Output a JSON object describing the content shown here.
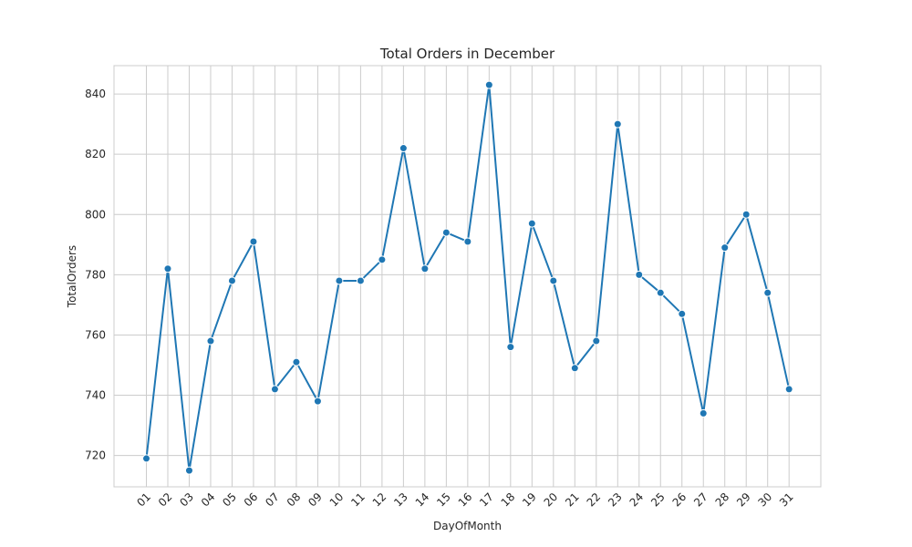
{
  "chart_data": {
    "type": "line",
    "title": "Total Orders in December",
    "xlabel": "DayOfMonth",
    "ylabel": "TotalOrders",
    "categories": [
      "01",
      "02",
      "03",
      "04",
      "05",
      "06",
      "07",
      "08",
      "09",
      "10",
      "11",
      "12",
      "13",
      "14",
      "15",
      "16",
      "17",
      "18",
      "19",
      "20",
      "21",
      "22",
      "23",
      "24",
      "25",
      "26",
      "27",
      "28",
      "29",
      "30",
      "31"
    ],
    "series": [
      {
        "values": [
          719,
          782,
          715,
          758,
          778,
          791,
          742,
          751,
          738,
          778,
          778,
          785,
          822,
          782,
          794,
          791,
          843,
          756,
          797,
          778,
          749,
          758,
          830,
          780,
          774,
          767,
          734,
          789,
          800,
          774,
          742
        ]
      }
    ],
    "ylim": [
      709.6,
      849.4
    ],
    "yticks": [
      720,
      740,
      760,
      780,
      800,
      820,
      840
    ],
    "grid": true,
    "markers": true,
    "colors": {
      "line": "#1f77b4",
      "grid": "#cccccc",
      "frame": "#cccccc",
      "text": "#262626"
    }
  }
}
